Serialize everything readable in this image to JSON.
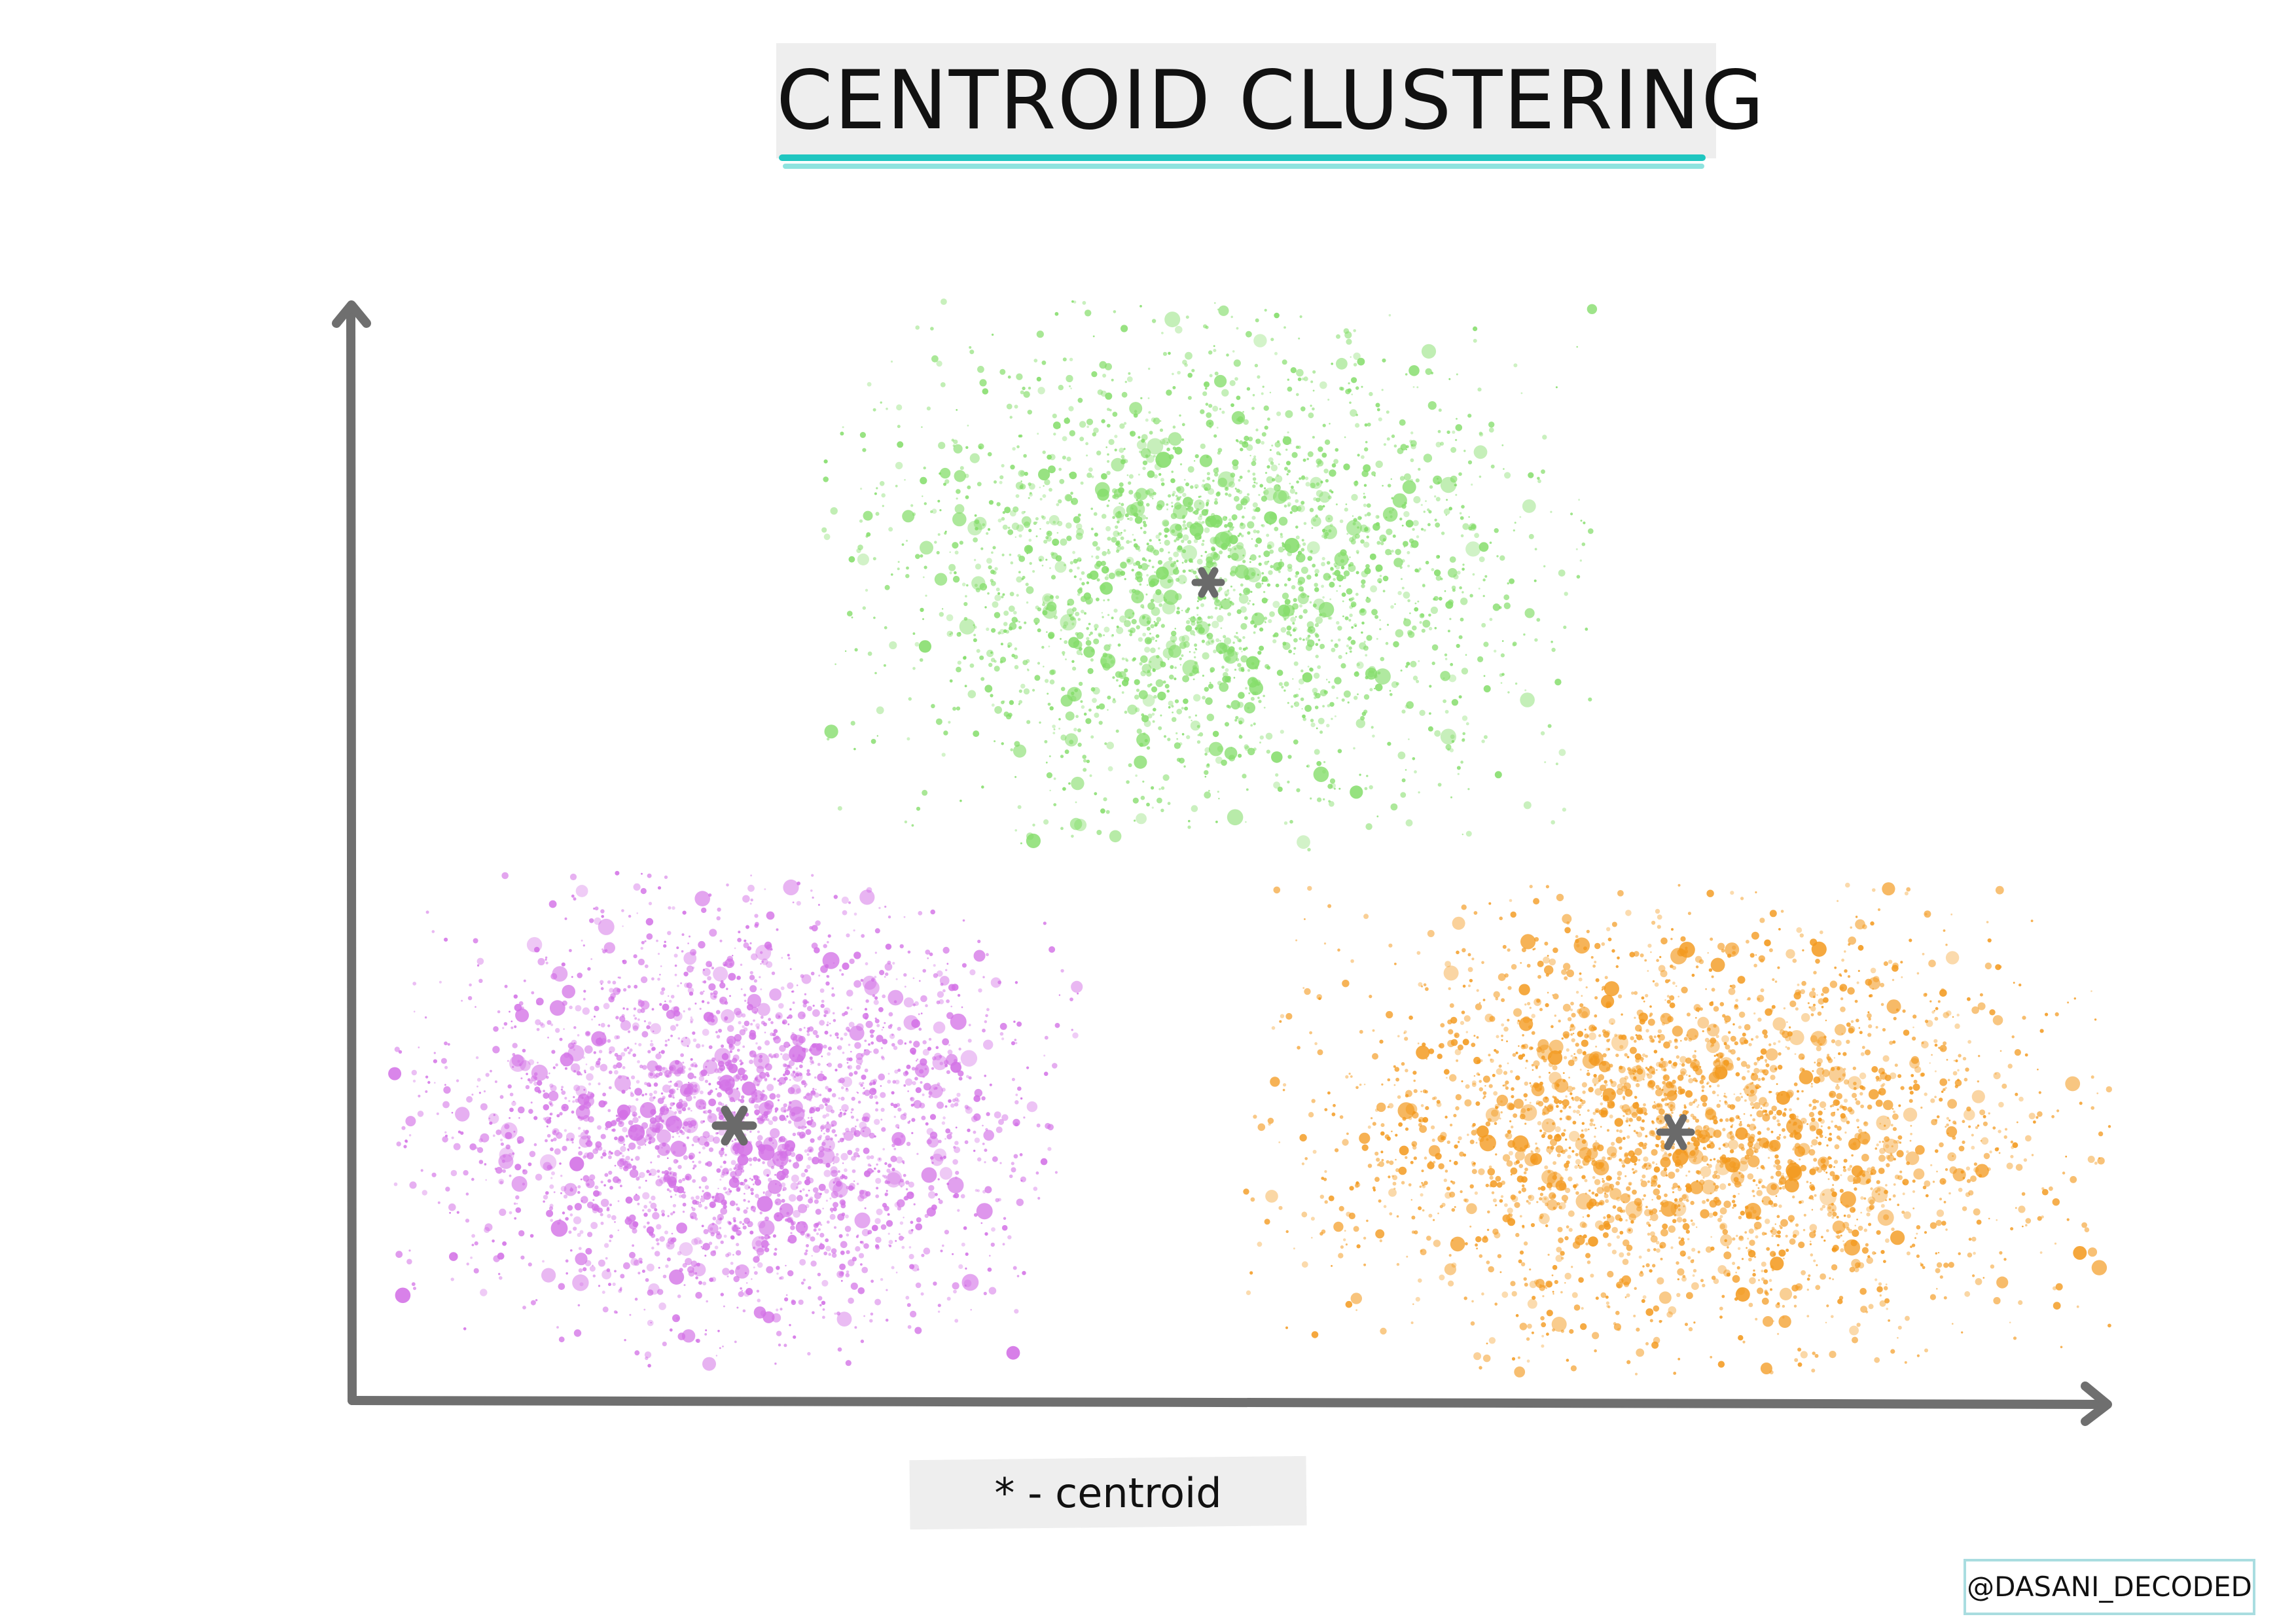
{
  "title": "CENTROID CLUSTERING",
  "legend": "* - centroid",
  "credit": "@DASANI_DECODED",
  "colors": {
    "title_underline": "#1fc6c0",
    "axis": "#6f6f6f",
    "centroid": "#6a6a6a"
  },
  "icons": {
    "centroid_marker": "asterisk",
    "axis_arrow": "arrowhead"
  },
  "clusters": [
    {
      "name": "green-cluster",
      "color": "#84dd6a"
    },
    {
      "name": "purple-cluster",
      "color": "#d371e6"
    },
    {
      "name": "orange-cluster",
      "color": "#f39a1f"
    }
  ]
}
